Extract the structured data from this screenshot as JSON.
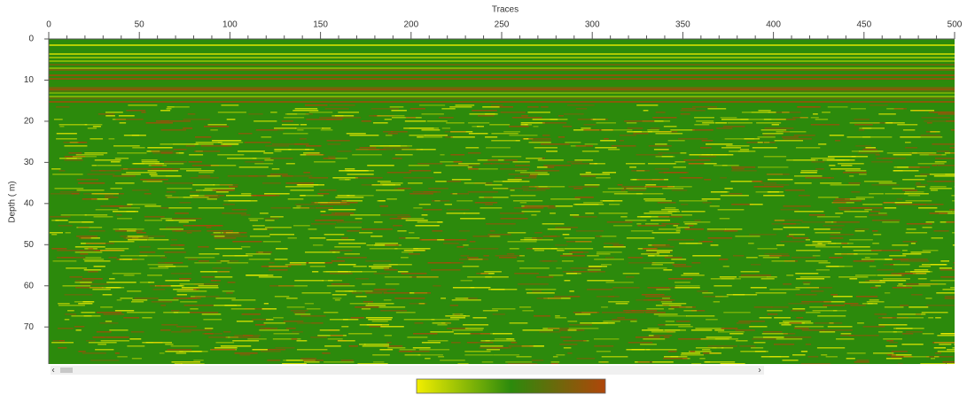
{
  "chart_data": {
    "type": "heatmap",
    "x_label": "Traces",
    "y_label": "Depth ( m)",
    "xlim": [
      0,
      500
    ],
    "ylim": [
      0,
      79
    ],
    "xticks": [
      0,
      50,
      100,
      150,
      200,
      250,
      300,
      350,
      400,
      450,
      500
    ],
    "yticks": [
      0,
      10,
      20,
      30,
      40,
      50,
      60,
      70
    ],
    "colormap": [
      "#f2ee00",
      "#2c8a0c",
      "#b0460a"
    ]
  }
}
